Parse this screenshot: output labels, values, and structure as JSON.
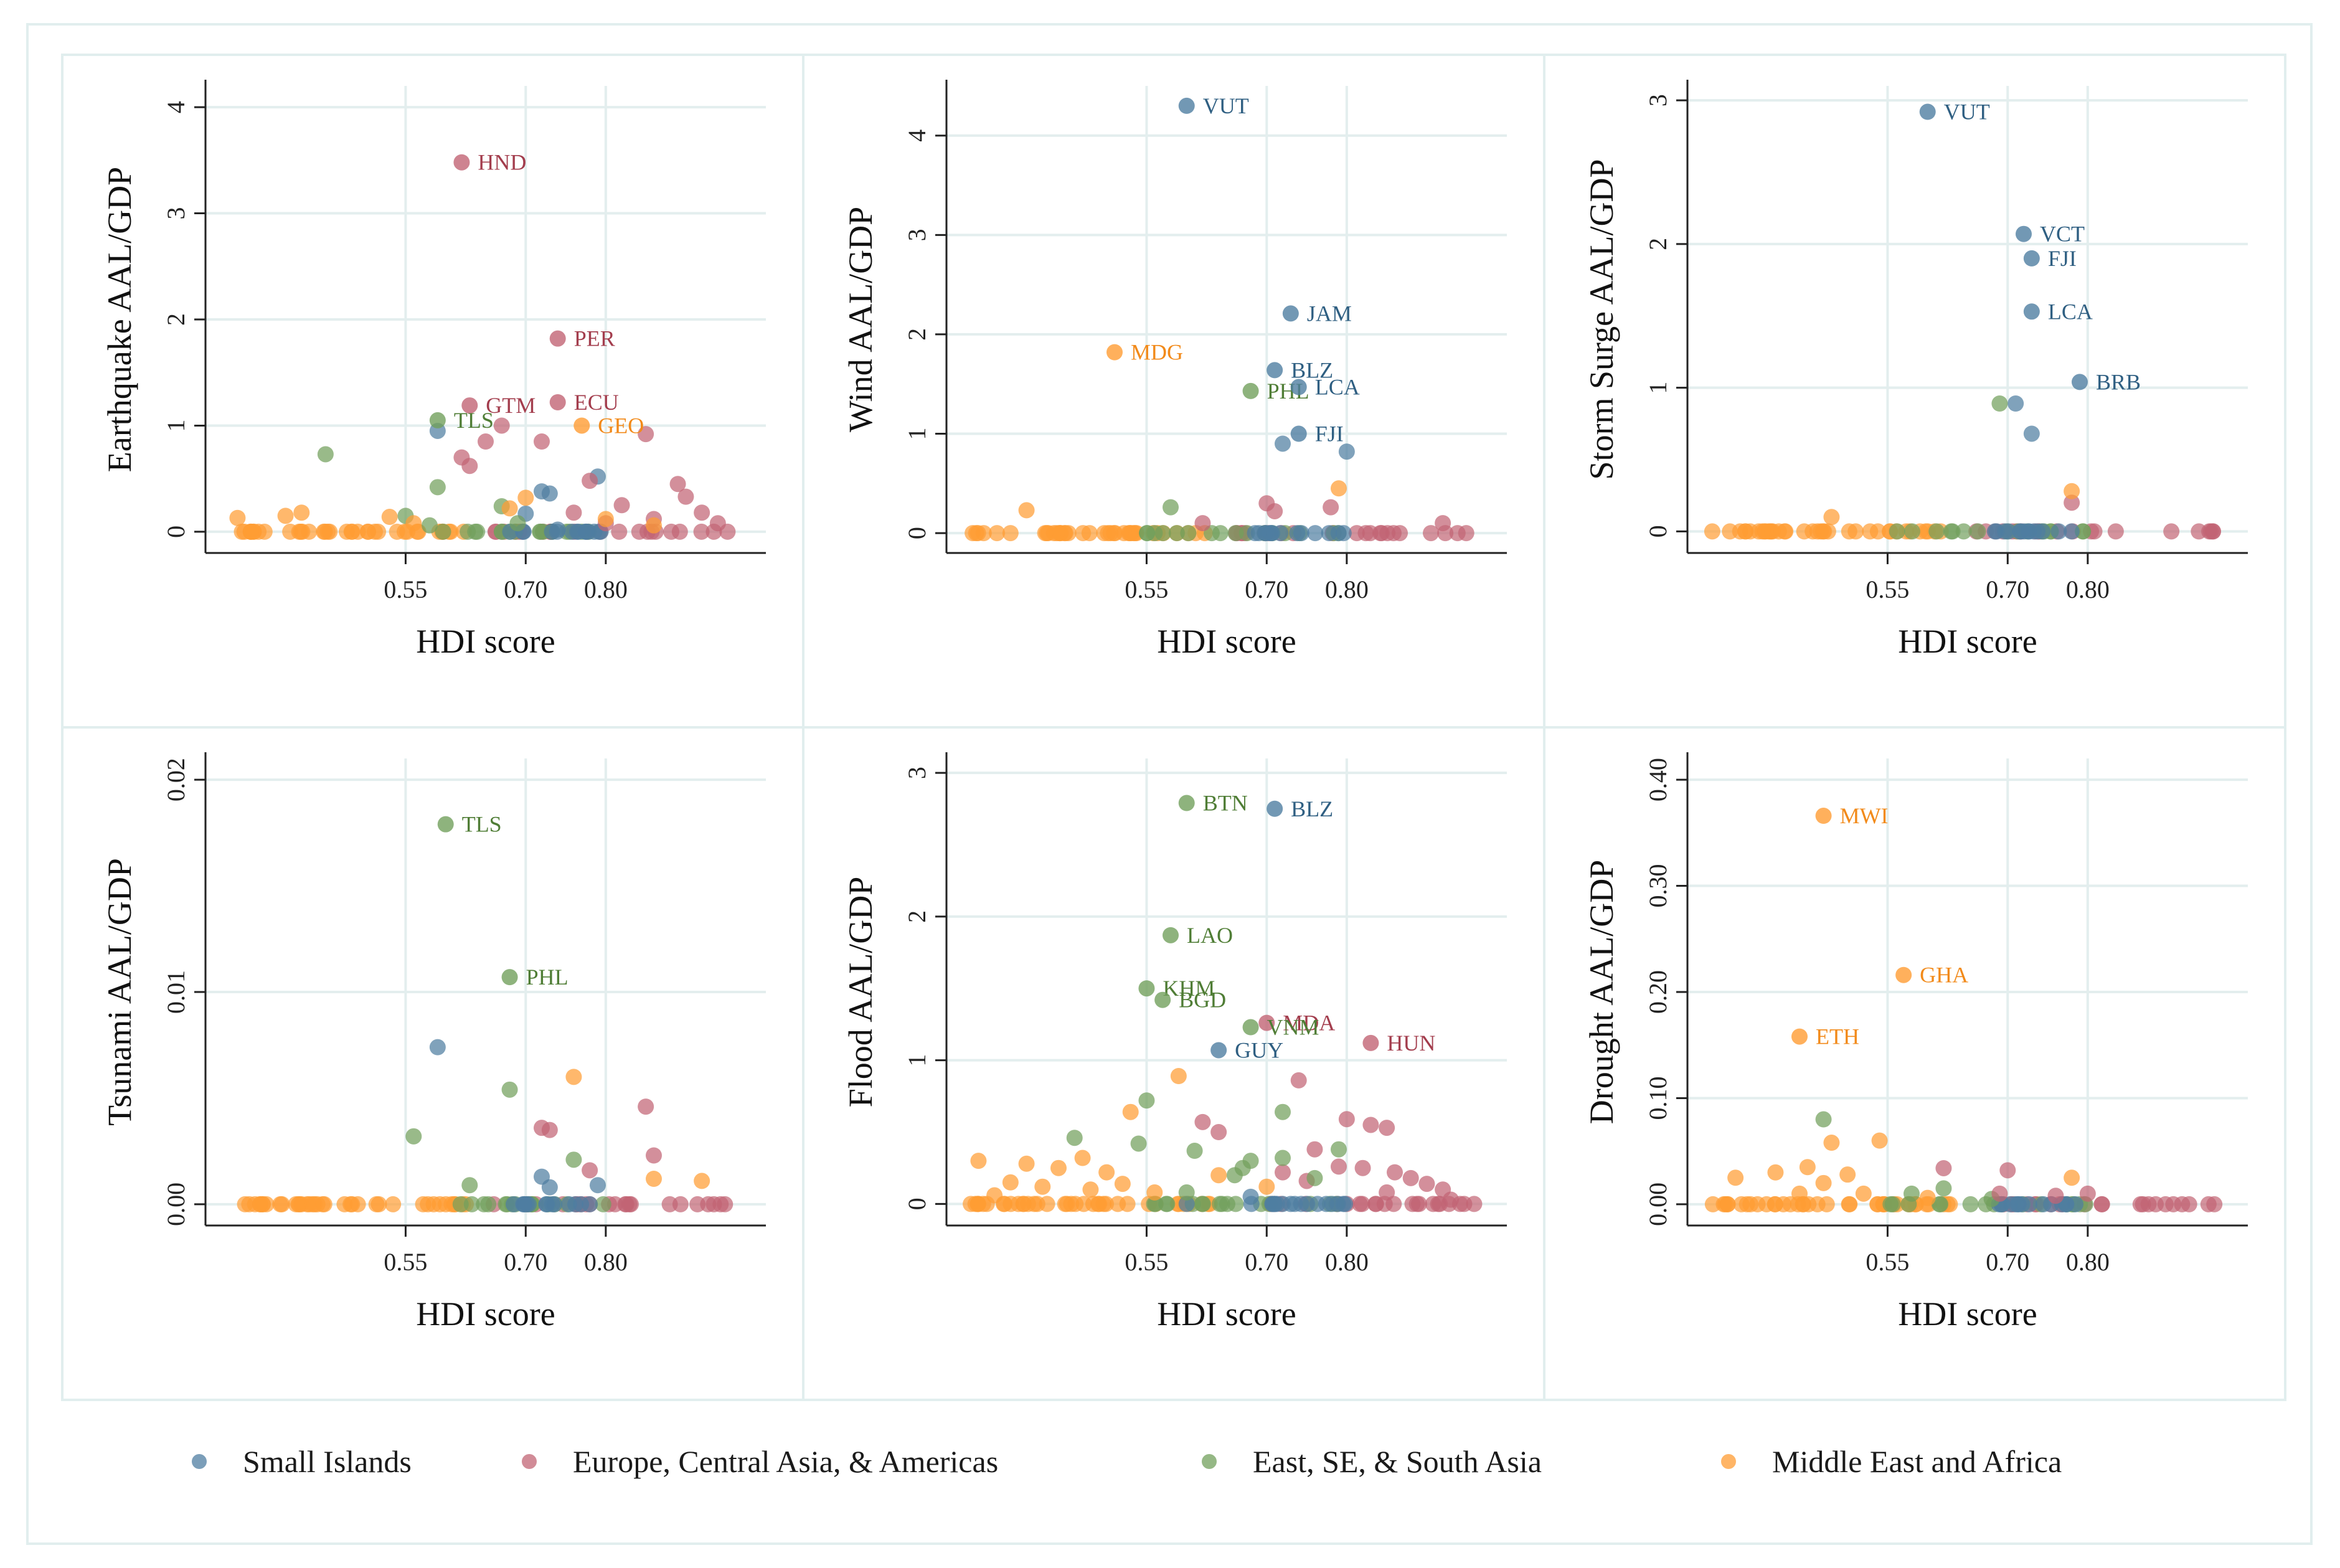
{
  "legend": [
    {
      "label": "Small Islands",
      "color": "#4f7ea1"
    },
    {
      "label": "Europe, Central Asia, & Americas",
      "color": "#c26474"
    },
    {
      "label": "East, SE, & South Asia",
      "color": "#72a05c"
    },
    {
      "label": "Middle East and Africa",
      "color": "#ff9c33"
    }
  ],
  "chart_data": [
    {
      "type": "scatter",
      "title": "",
      "xlabel": "HDI score",
      "ylabel": "Earthquake AAL/GDP",
      "xlim": [
        0.3,
        1.0
      ],
      "ylim": [
        -0.2,
        4.2
      ],
      "xticks": [
        0.55,
        0.7,
        0.8
      ],
      "xtick_labels": [
        "0.55",
        "0.70",
        "0.80"
      ],
      "yticks": [
        0,
        1,
        2,
        3,
        4
      ],
      "ytick_labels": [
        "0",
        "1",
        "2",
        "3",
        "4"
      ],
      "labeled_points": [
        {
          "label": "HND",
          "x": 0.62,
          "y": 3.48,
          "group": 1
        },
        {
          "label": "PER",
          "x": 0.74,
          "y": 1.82,
          "group": 1
        },
        {
          "label": "GTM",
          "x": 0.63,
          "y": 1.19,
          "group": 1
        },
        {
          "label": "ECU",
          "x": 0.74,
          "y": 1.22,
          "group": 1
        },
        {
          "label": "TLS",
          "x": 0.59,
          "y": 1.05,
          "group": 2
        },
        {
          "label": "GEO",
          "x": 0.77,
          "y": 1.0,
          "group": 3
        }
      ],
      "points": [
        {
          "x": 0.59,
          "y": 0.95,
          "group": 0
        },
        {
          "x": 0.72,
          "y": 0.38,
          "group": 0
        },
        {
          "x": 0.73,
          "y": 0.36,
          "group": 0
        },
        {
          "x": 0.79,
          "y": 0.52,
          "group": 0
        },
        {
          "x": 0.7,
          "y": 0.17,
          "group": 0
        },
        {
          "x": 0.74,
          "y": 0.02,
          "group": 0
        },
        {
          "x": 0.62,
          "y": 0.7,
          "group": 1
        },
        {
          "x": 0.65,
          "y": 0.85,
          "group": 1
        },
        {
          "x": 0.67,
          "y": 1.0,
          "group": 1
        },
        {
          "x": 0.72,
          "y": 0.85,
          "group": 1
        },
        {
          "x": 0.78,
          "y": 0.48,
          "group": 1
        },
        {
          "x": 0.82,
          "y": 0.25,
          "group": 1
        },
        {
          "x": 0.85,
          "y": 0.92,
          "group": 1
        },
        {
          "x": 0.89,
          "y": 0.45,
          "group": 1
        },
        {
          "x": 0.9,
          "y": 0.33,
          "group": 1
        },
        {
          "x": 0.76,
          "y": 0.18,
          "group": 1
        },
        {
          "x": 0.8,
          "y": 0.08,
          "group": 1
        },
        {
          "x": 0.86,
          "y": 0.12,
          "group": 1
        },
        {
          "x": 0.92,
          "y": 0.18,
          "group": 1
        },
        {
          "x": 0.94,
          "y": 0.08,
          "group": 1
        },
        {
          "x": 0.63,
          "y": 0.62,
          "group": 1
        },
        {
          "x": 0.45,
          "y": 0.73,
          "group": 2
        },
        {
          "x": 0.59,
          "y": 0.42,
          "group": 2
        },
        {
          "x": 0.67,
          "y": 0.24,
          "group": 2
        },
        {
          "x": 0.58,
          "y": 0.06,
          "group": 2
        },
        {
          "x": 0.69,
          "y": 0.08,
          "group": 2
        },
        {
          "x": 0.55,
          "y": 0.15,
          "group": 2
        },
        {
          "x": 0.7,
          "y": 0.32,
          "group": 3
        },
        {
          "x": 0.34,
          "y": 0.13,
          "group": 3
        },
        {
          "x": 0.4,
          "y": 0.15,
          "group": 3
        },
        {
          "x": 0.42,
          "y": 0.18,
          "group": 3
        },
        {
          "x": 0.53,
          "y": 0.14,
          "group": 3
        },
        {
          "x": 0.56,
          "y": 0.08,
          "group": 3
        },
        {
          "x": 0.68,
          "y": 0.22,
          "group": 3
        },
        {
          "x": 0.8,
          "y": 0.12,
          "group": 3
        },
        {
          "x": 0.86,
          "y": 0.06,
          "group": 3
        }
      ]
    },
    {
      "type": "scatter",
      "title": "",
      "xlabel": "HDI score",
      "ylabel": "Wind AAL/GDP",
      "xlim": [
        0.3,
        1.0
      ],
      "ylim": [
        -0.2,
        4.5
      ],
      "xticks": [
        0.55,
        0.7,
        0.8
      ],
      "xtick_labels": [
        "0.55",
        "0.70",
        "0.80"
      ],
      "yticks": [
        0,
        1,
        2,
        3,
        4
      ],
      "ytick_labels": [
        "0",
        "1",
        "2",
        "3",
        "4"
      ],
      "labeled_points": [
        {
          "label": "VUT",
          "x": 0.6,
          "y": 4.3,
          "group": 0
        },
        {
          "label": "JAM",
          "x": 0.73,
          "y": 2.21,
          "group": 0
        },
        {
          "label": "MDG",
          "x": 0.51,
          "y": 1.82,
          "group": 3
        },
        {
          "label": "BLZ",
          "x": 0.71,
          "y": 1.64,
          "group": 0
        },
        {
          "label": "PHL",
          "x": 0.68,
          "y": 1.43,
          "group": 2
        },
        {
          "label": "LCA",
          "x": 0.74,
          "y": 1.47,
          "group": 0
        },
        {
          "label": "FJI",
          "x": 0.74,
          "y": 1.0,
          "group": 0
        }
      ],
      "points": [
        {
          "x": 0.72,
          "y": 0.9,
          "group": 0
        },
        {
          "x": 0.8,
          "y": 0.82,
          "group": 0
        },
        {
          "x": 0.7,
          "y": 0.3,
          "group": 1
        },
        {
          "x": 0.71,
          "y": 0.22,
          "group": 1
        },
        {
          "x": 0.78,
          "y": 0.26,
          "group": 1
        },
        {
          "x": 0.92,
          "y": 0.1,
          "group": 1
        },
        {
          "x": 0.62,
          "y": 0.1,
          "group": 1
        },
        {
          "x": 0.58,
          "y": 0.26,
          "group": 2
        },
        {
          "x": 0.79,
          "y": 0.45,
          "group": 3
        },
        {
          "x": 0.4,
          "y": 0.23,
          "group": 3
        }
      ]
    },
    {
      "type": "scatter",
      "title": "",
      "xlabel": "HDI score",
      "ylabel": "Storm Surge AAL/GDP",
      "xlim": [
        0.3,
        1.0
      ],
      "ylim": [
        -0.15,
        3.1
      ],
      "xticks": [
        0.55,
        0.7,
        0.8
      ],
      "xtick_labels": [
        "0.55",
        "0.70",
        "0.80"
      ],
      "yticks": [
        0,
        1,
        2,
        3
      ],
      "ytick_labels": [
        "0",
        "1",
        "2",
        "3"
      ],
      "labeled_points": [
        {
          "label": "VUT",
          "x": 0.6,
          "y": 2.92,
          "group": 0
        },
        {
          "label": "VCT",
          "x": 0.72,
          "y": 2.07,
          "group": 0
        },
        {
          "label": "FJI",
          "x": 0.73,
          "y": 1.9,
          "group": 0
        },
        {
          "label": "LCA",
          "x": 0.73,
          "y": 1.53,
          "group": 0
        },
        {
          "label": "BRB",
          "x": 0.79,
          "y": 1.04,
          "group": 0
        }
      ],
      "points": [
        {
          "x": 0.71,
          "y": 0.89,
          "group": 0
        },
        {
          "x": 0.73,
          "y": 0.68,
          "group": 0
        },
        {
          "x": 0.69,
          "y": 0.89,
          "group": 2
        },
        {
          "x": 0.78,
          "y": 0.2,
          "group": 1
        },
        {
          "x": 0.78,
          "y": 0.28,
          "group": 3
        },
        {
          "x": 0.48,
          "y": 0.1,
          "group": 3
        }
      ]
    },
    {
      "type": "scatter",
      "title": "",
      "xlabel": "HDI score",
      "ylabel": "Tsunami AAL/GDP",
      "xlim": [
        0.3,
        1.0
      ],
      "ylim": [
        -0.001,
        0.021
      ],
      "xticks": [
        0.55,
        0.7,
        0.8
      ],
      "xtick_labels": [
        "0.55",
        "0.70",
        "0.80"
      ],
      "yticks": [
        0,
        0.01,
        0.02
      ],
      "ytick_labels": [
        "0.00",
        "0.01",
        "0.02"
      ],
      "labeled_points": [
        {
          "label": "TLS",
          "x": 0.6,
          "y": 0.0179,
          "group": 2
        },
        {
          "label": "PHL",
          "x": 0.68,
          "y": 0.0107,
          "group": 2
        }
      ],
      "points": [
        {
          "x": 0.59,
          "y": 0.0074,
          "group": 0
        },
        {
          "x": 0.72,
          "y": 0.0013,
          "group": 0
        },
        {
          "x": 0.73,
          "y": 0.0008,
          "group": 0
        },
        {
          "x": 0.79,
          "y": 0.0009,
          "group": 0
        },
        {
          "x": 0.72,
          "y": 0.0036,
          "group": 1
        },
        {
          "x": 0.73,
          "y": 0.0035,
          "group": 1
        },
        {
          "x": 0.85,
          "y": 0.0046,
          "group": 1
        },
        {
          "x": 0.86,
          "y": 0.0023,
          "group": 1
        },
        {
          "x": 0.78,
          "y": 0.0016,
          "group": 1
        },
        {
          "x": 0.68,
          "y": 0.0054,
          "group": 2
        },
        {
          "x": 0.56,
          "y": 0.0032,
          "group": 2
        },
        {
          "x": 0.76,
          "y": 0.0021,
          "group": 2
        },
        {
          "x": 0.63,
          "y": 0.0009,
          "group": 2
        },
        {
          "x": 0.76,
          "y": 0.006,
          "group": 3
        },
        {
          "x": 0.86,
          "y": 0.0012,
          "group": 3
        },
        {
          "x": 0.92,
          "y": 0.0011,
          "group": 3
        }
      ]
    },
    {
      "type": "scatter",
      "title": "",
      "xlabel": "HDI score",
      "ylabel": "Flood AAL/GDP",
      "xlim": [
        0.3,
        1.0
      ],
      "ylim": [
        -0.15,
        3.1
      ],
      "xticks": [
        0.55,
        0.7,
        0.8
      ],
      "xtick_labels": [
        "0.55",
        "0.70",
        "0.80"
      ],
      "yticks": [
        0,
        1,
        2,
        3
      ],
      "ytick_labels": [
        "0",
        "1",
        "2",
        "3"
      ],
      "labeled_points": [
        {
          "label": "BTN",
          "x": 0.6,
          "y": 2.79,
          "group": 2
        },
        {
          "label": "BLZ",
          "x": 0.71,
          "y": 2.75,
          "group": 0
        },
        {
          "label": "LAO",
          "x": 0.58,
          "y": 1.87,
          "group": 2
        },
        {
          "label": "KHM",
          "x": 0.55,
          "y": 1.5,
          "group": 2
        },
        {
          "label": "BGD",
          "x": 0.57,
          "y": 1.42,
          "group": 2
        },
        {
          "label": "MDA",
          "x": 0.7,
          "y": 1.26,
          "group": 1
        },
        {
          "label": "VNM",
          "x": 0.68,
          "y": 1.23,
          "group": 2
        },
        {
          "label": "HUN",
          "x": 0.83,
          "y": 1.12,
          "group": 1
        },
        {
          "label": "GUY",
          "x": 0.64,
          "y": 1.07,
          "group": 0
        }
      ],
      "points": [
        {
          "x": 0.68,
          "y": 0.05,
          "group": 0
        },
        {
          "x": 0.71,
          "y": 0.0,
          "group": 0
        },
        {
          "x": 0.72,
          "y": 0.0,
          "group": 0
        },
        {
          "x": 0.73,
          "y": 0.0,
          "group": 0
        },
        {
          "x": 0.6,
          "y": 0.0,
          "group": 0
        },
        {
          "x": 0.74,
          "y": 0.86,
          "group": 1
        },
        {
          "x": 0.62,
          "y": 0.57,
          "group": 1
        },
        {
          "x": 0.64,
          "y": 0.5,
          "group": 1
        },
        {
          "x": 0.8,
          "y": 0.59,
          "group": 1
        },
        {
          "x": 0.83,
          "y": 0.55,
          "group": 1
        },
        {
          "x": 0.85,
          "y": 0.53,
          "group": 1
        },
        {
          "x": 0.76,
          "y": 0.38,
          "group": 1
        },
        {
          "x": 0.79,
          "y": 0.26,
          "group": 1
        },
        {
          "x": 0.82,
          "y": 0.25,
          "group": 1
        },
        {
          "x": 0.86,
          "y": 0.22,
          "group": 1
        },
        {
          "x": 0.88,
          "y": 0.18,
          "group": 1
        },
        {
          "x": 0.9,
          "y": 0.14,
          "group": 1
        },
        {
          "x": 0.92,
          "y": 0.1,
          "group": 1
        },
        {
          "x": 0.72,
          "y": 0.22,
          "group": 1
        },
        {
          "x": 0.75,
          "y": 0.16,
          "group": 1
        },
        {
          "x": 0.85,
          "y": 0.08,
          "group": 1
        },
        {
          "x": 0.93,
          "y": 0.03,
          "group": 1
        },
        {
          "x": 0.55,
          "y": 0.72,
          "group": 2
        },
        {
          "x": 0.46,
          "y": 0.46,
          "group": 2
        },
        {
          "x": 0.54,
          "y": 0.42,
          "group": 2
        },
        {
          "x": 0.61,
          "y": 0.37,
          "group": 2
        },
        {
          "x": 0.72,
          "y": 0.64,
          "group": 2
        },
        {
          "x": 0.79,
          "y": 0.38,
          "group": 2
        },
        {
          "x": 0.68,
          "y": 0.3,
          "group": 2
        },
        {
          "x": 0.72,
          "y": 0.32,
          "group": 2
        },
        {
          "x": 0.67,
          "y": 0.25,
          "group": 2
        },
        {
          "x": 0.76,
          "y": 0.18,
          "group": 2
        },
        {
          "x": 0.66,
          "y": 0.2,
          "group": 2
        },
        {
          "x": 0.6,
          "y": 0.08,
          "group": 2
        },
        {
          "x": 0.59,
          "y": 0.89,
          "group": 3
        },
        {
          "x": 0.53,
          "y": 0.64,
          "group": 3
        },
        {
          "x": 0.47,
          "y": 0.32,
          "group": 3
        },
        {
          "x": 0.34,
          "y": 0.3,
          "group": 3
        },
        {
          "x": 0.4,
          "y": 0.28,
          "group": 3
        },
        {
          "x": 0.44,
          "y": 0.25,
          "group": 3
        },
        {
          "x": 0.5,
          "y": 0.22,
          "group": 3
        },
        {
          "x": 0.38,
          "y": 0.15,
          "group": 3
        },
        {
          "x": 0.42,
          "y": 0.12,
          "group": 3
        },
        {
          "x": 0.48,
          "y": 0.1,
          "group": 3
        },
        {
          "x": 0.52,
          "y": 0.14,
          "group": 3
        },
        {
          "x": 0.56,
          "y": 0.08,
          "group": 3
        },
        {
          "x": 0.64,
          "y": 0.2,
          "group": 3
        },
        {
          "x": 0.7,
          "y": 0.12,
          "group": 3
        },
        {
          "x": 0.36,
          "y": 0.06,
          "group": 3
        }
      ]
    },
    {
      "type": "scatter",
      "title": "",
      "xlabel": "HDI score",
      "ylabel": "Drought AAL/GDP",
      "xlim": [
        0.3,
        1.0
      ],
      "ylim": [
        -0.02,
        0.42
      ],
      "xticks": [
        0.55,
        0.7,
        0.8
      ],
      "xtick_labels": [
        "0.55",
        "0.70",
        "0.80"
      ],
      "yticks": [
        0,
        0.1,
        0.2,
        0.3,
        0.4
      ],
      "ytick_labels": [
        "0.00",
        "0.10",
        "0.20",
        "0.30",
        "0.40"
      ],
      "labeled_points": [
        {
          "label": "MWI",
          "x": 0.47,
          "y": 0.366,
          "group": 3
        },
        {
          "label": "GHA",
          "x": 0.57,
          "y": 0.216,
          "group": 3
        },
        {
          "label": "ETH",
          "x": 0.44,
          "y": 0.158,
          "group": 3
        }
      ],
      "points": [
        {
          "x": 0.47,
          "y": 0.08,
          "group": 2
        },
        {
          "x": 0.58,
          "y": 0.01,
          "group": 2
        },
        {
          "x": 0.62,
          "y": 0.015,
          "group": 2
        },
        {
          "x": 0.68,
          "y": 0.005,
          "group": 2
        },
        {
          "x": 0.62,
          "y": 0.034,
          "group": 1
        },
        {
          "x": 0.7,
          "y": 0.032,
          "group": 1
        },
        {
          "x": 0.69,
          "y": 0.01,
          "group": 1
        },
        {
          "x": 0.76,
          "y": 0.008,
          "group": 1
        },
        {
          "x": 0.8,
          "y": 0.01,
          "group": 1
        },
        {
          "x": 0.71,
          "y": 0.0,
          "group": 0
        },
        {
          "x": 0.36,
          "y": 0.025,
          "group": 3
        },
        {
          "x": 0.41,
          "y": 0.03,
          "group": 3
        },
        {
          "x": 0.45,
          "y": 0.035,
          "group": 3
        },
        {
          "x": 0.48,
          "y": 0.058,
          "group": 3
        },
        {
          "x": 0.54,
          "y": 0.06,
          "group": 3
        },
        {
          "x": 0.5,
          "y": 0.028,
          "group": 3
        },
        {
          "x": 0.47,
          "y": 0.02,
          "group": 3
        },
        {
          "x": 0.52,
          "y": 0.01,
          "group": 3
        },
        {
          "x": 0.78,
          "y": 0.025,
          "group": 3
        },
        {
          "x": 0.44,
          "y": 0.01,
          "group": 3
        },
        {
          "x": 0.6,
          "y": 0.006,
          "group": 3
        }
      ]
    }
  ]
}
